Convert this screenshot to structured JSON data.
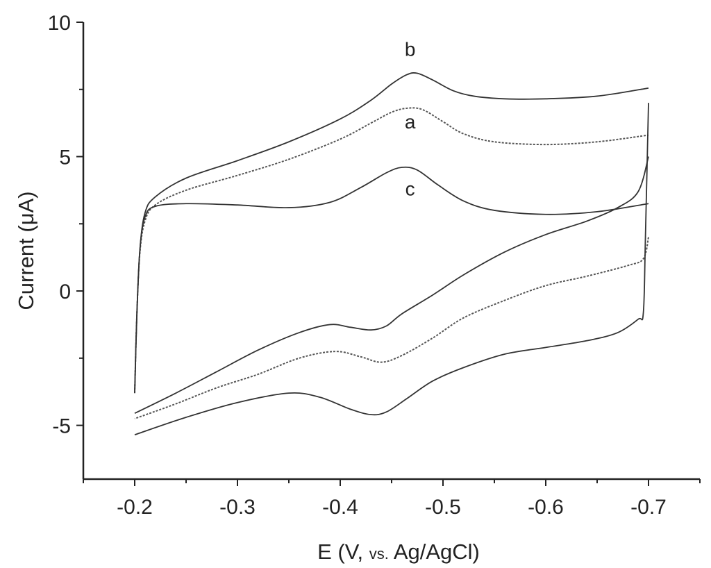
{
  "chart_data": {
    "type": "line",
    "title": "",
    "xlabel": {
      "prefix": "E  (V,",
      "small": "vs.",
      "suffix": "Ag/AgCl)"
    },
    "ylabel": "Current (μA)",
    "xlim": [
      -0.15,
      -0.75
    ],
    "ylim": [
      -7,
      10
    ],
    "x_axis_reversed": true,
    "x_ticks": [
      -0.2,
      -0.3,
      -0.4,
      -0.5,
      -0.6,
      -0.7
    ],
    "x_tick_labels": [
      "-0.2",
      "-0.3",
      "-0.4",
      "-0.5",
      "-0.6",
      "-0.7"
    ],
    "y_ticks": [
      -5,
      0,
      5,
      10
    ],
    "y_tick_labels": [
      "-5",
      "0",
      "5",
      "10"
    ],
    "grid": false,
    "legend": "none",
    "series": [
      {
        "name": "b",
        "label_position": [
          -0.468,
          8.75
        ],
        "color": "#333333",
        "style": "solid",
        "forward": [
          [
            -0.2,
            -3.8
          ],
          [
            -0.202,
            -1.0
          ],
          [
            -0.205,
            1.5
          ],
          [
            -0.21,
            2.9
          ],
          [
            -0.22,
            3.5
          ],
          [
            -0.25,
            4.2
          ],
          [
            -0.3,
            4.85
          ],
          [
            -0.35,
            5.55
          ],
          [
            -0.4,
            6.4
          ],
          [
            -0.43,
            7.1
          ],
          [
            -0.45,
            7.7
          ],
          [
            -0.465,
            8.05
          ],
          [
            -0.475,
            8.1
          ],
          [
            -0.49,
            7.85
          ],
          [
            -0.51,
            7.45
          ],
          [
            -0.53,
            7.25
          ],
          [
            -0.56,
            7.15
          ],
          [
            -0.6,
            7.15
          ],
          [
            -0.65,
            7.25
          ],
          [
            -0.7,
            7.55
          ]
        ],
        "reverse": [
          [
            -0.7,
            5.0
          ],
          [
            -0.69,
            3.7
          ],
          [
            -0.67,
            3.1
          ],
          [
            -0.64,
            2.6
          ],
          [
            -0.6,
            2.1
          ],
          [
            -0.56,
            1.45
          ],
          [
            -0.52,
            0.6
          ],
          [
            -0.49,
            -0.15
          ],
          [
            -0.46,
            -0.85
          ],
          [
            -0.445,
            -1.3
          ],
          [
            -0.43,
            -1.45
          ],
          [
            -0.41,
            -1.35
          ],
          [
            -0.39,
            -1.25
          ],
          [
            -0.36,
            -1.55
          ],
          [
            -0.32,
            -2.2
          ],
          [
            -0.28,
            -3.0
          ],
          [
            -0.24,
            -3.8
          ],
          [
            -0.2,
            -4.55
          ]
        ]
      },
      {
        "name": "a",
        "label_position": [
          -0.468,
          6.05
        ],
        "color": "#555555",
        "style": "dotted",
        "forward": [
          [
            -0.2,
            -3.8
          ],
          [
            -0.202,
            -1.0
          ],
          [
            -0.205,
            1.4
          ],
          [
            -0.21,
            2.6
          ],
          [
            -0.22,
            3.2
          ],
          [
            -0.25,
            3.75
          ],
          [
            -0.3,
            4.3
          ],
          [
            -0.35,
            4.9
          ],
          [
            -0.4,
            5.65
          ],
          [
            -0.43,
            6.25
          ],
          [
            -0.45,
            6.65
          ],
          [
            -0.465,
            6.8
          ],
          [
            -0.48,
            6.75
          ],
          [
            -0.5,
            6.3
          ],
          [
            -0.52,
            5.85
          ],
          [
            -0.55,
            5.55
          ],
          [
            -0.6,
            5.45
          ],
          [
            -0.65,
            5.55
          ],
          [
            -0.7,
            5.8
          ]
        ],
        "reverse": [
          [
            -0.7,
            2.0
          ],
          [
            -0.695,
            1.2
          ],
          [
            -0.68,
            0.95
          ],
          [
            -0.64,
            0.55
          ],
          [
            -0.6,
            0.2
          ],
          [
            -0.56,
            -0.35
          ],
          [
            -0.52,
            -1.0
          ],
          [
            -0.49,
            -1.75
          ],
          [
            -0.46,
            -2.4
          ],
          [
            -0.44,
            -2.65
          ],
          [
            -0.42,
            -2.45
          ],
          [
            -0.395,
            -2.25
          ],
          [
            -0.36,
            -2.5
          ],
          [
            -0.32,
            -3.1
          ],
          [
            -0.28,
            -3.6
          ],
          [
            -0.24,
            -4.2
          ],
          [
            -0.2,
            -4.75
          ]
        ]
      },
      {
        "name": "c",
        "label_position": [
          -0.468,
          3.55
        ],
        "color": "#333333",
        "style": "solid",
        "forward": [
          [
            -0.2,
            -3.8
          ],
          [
            -0.202,
            -1.0
          ],
          [
            -0.205,
            1.5
          ],
          [
            -0.21,
            2.75
          ],
          [
            -0.22,
            3.15
          ],
          [
            -0.25,
            3.25
          ],
          [
            -0.3,
            3.2
          ],
          [
            -0.35,
            3.1
          ],
          [
            -0.39,
            3.3
          ],
          [
            -0.42,
            3.85
          ],
          [
            -0.445,
            4.4
          ],
          [
            -0.46,
            4.6
          ],
          [
            -0.475,
            4.5
          ],
          [
            -0.495,
            3.95
          ],
          [
            -0.52,
            3.35
          ],
          [
            -0.55,
            3.0
          ],
          [
            -0.6,
            2.85
          ],
          [
            -0.65,
            2.95
          ],
          [
            -0.7,
            3.25
          ]
        ],
        "reverse": [
          [
            -0.7,
            7.0
          ],
          [
            -0.697,
            2.0
          ],
          [
            -0.695,
            -0.8
          ],
          [
            -0.69,
            -1.05
          ],
          [
            -0.67,
            -1.55
          ],
          [
            -0.64,
            -1.85
          ],
          [
            -0.6,
            -2.1
          ],
          [
            -0.56,
            -2.35
          ],
          [
            -0.52,
            -2.85
          ],
          [
            -0.49,
            -3.35
          ],
          [
            -0.465,
            -4.0
          ],
          [
            -0.445,
            -4.5
          ],
          [
            -0.43,
            -4.6
          ],
          [
            -0.41,
            -4.4
          ],
          [
            -0.38,
            -3.95
          ],
          [
            -0.35,
            -3.8
          ],
          [
            -0.3,
            -4.15
          ],
          [
            -0.25,
            -4.7
          ],
          [
            -0.2,
            -5.35
          ]
        ]
      }
    ]
  }
}
